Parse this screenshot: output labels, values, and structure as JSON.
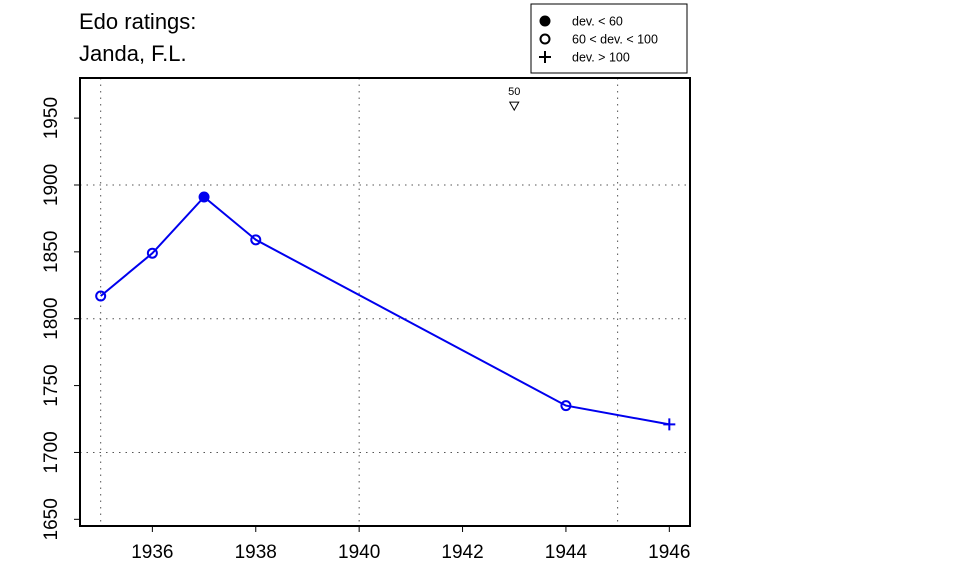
{
  "chart_data": {
    "type": "line",
    "title": "Edo ratings:",
    "subtitle": "Janda, F.L.",
    "xlabel": "",
    "ylabel": "",
    "xlim": [
      1934.6,
      1946.4
    ],
    "ylim": [
      1645,
      1980
    ],
    "x_ticks": [
      1936,
      1938,
      1940,
      1942,
      1944,
      1946
    ],
    "y_ticks": [
      1650,
      1700,
      1750,
      1800,
      1850,
      1900,
      1950
    ],
    "x_grid": [
      1935,
      1940,
      1945
    ],
    "y_grid": [
      1700,
      1800,
      1900
    ],
    "grid": true,
    "series_color": "#0000ee",
    "series": [
      {
        "points": [
          {
            "x": 1935,
            "y": 1817,
            "marker": "open-circle"
          },
          {
            "x": 1936,
            "y": 1849,
            "marker": "open-circle"
          },
          {
            "x": 1937,
            "y": 1891,
            "marker": "filled-circle"
          },
          {
            "x": 1938,
            "y": 1859,
            "marker": "open-circle"
          },
          {
            "x": 1944,
            "y": 1735,
            "marker": "open-circle"
          },
          {
            "x": 1946,
            "y": 1721,
            "marker": "plus"
          }
        ]
      }
    ],
    "annotations": [
      {
        "x": 1943,
        "y": 1962,
        "text": "50",
        "marker": "down-triangle"
      }
    ],
    "legend": {
      "placement": "top-right",
      "entries": [
        {
          "marker": "filled-circle",
          "label": "dev. < 60"
        },
        {
          "marker": "open-circle",
          "label": "60 < dev. < 100"
        },
        {
          "marker": "plus",
          "label": "dev. > 100"
        }
      ]
    }
  }
}
